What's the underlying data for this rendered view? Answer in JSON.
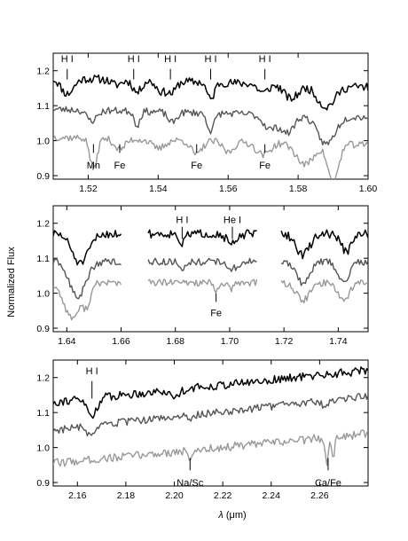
{
  "figure": {
    "ylabel": "Normalized Flux",
    "xlabel_symbol": "λ",
    "xlabel_unit": "(μm)"
  },
  "chart_data": [
    {
      "type": "line",
      "panel": "H-band",
      "xlim": [
        1.51,
        1.6
      ],
      "ylim": [
        0.89,
        1.25
      ],
      "xticks": [
        1.52,
        1.54,
        1.56,
        1.58,
        1.6
      ],
      "xtick_labels": [
        "1.52",
        "1.54",
        "1.56",
        "1.58",
        "1.60"
      ],
      "yticks": [
        0.9,
        1.0,
        1.1,
        1.2
      ],
      "ytick_labels": [
        "0.9",
        "1.0",
        "1.1",
        "1.2"
      ],
      "segments": [
        [
          1.51,
          1.6
        ]
      ],
      "series": [
        {
          "color": "#000000",
          "width": 1.5,
          "base": 1.18,
          "slope": -0.3,
          "noise": 0.012,
          "seed": 11,
          "features": [
            [
              1.514,
              0.045,
              0.0018
            ],
            [
              1.528,
              0.015,
              0.0015
            ],
            [
              1.534,
              0.035,
              0.0012
            ],
            [
              1.541,
              0.03,
              0.0015
            ],
            [
              1.544,
              0.03,
              0.0012
            ],
            [
              1.555,
              0.05,
              0.001
            ],
            [
              1.57,
              0.025,
              0.0015
            ],
            [
              1.578,
              0.04,
              0.002
            ],
            [
              1.588,
              0.06,
              0.0025
            ]
          ]
        },
        {
          "color": "#555555",
          "width": 1.4,
          "base": 1.09,
          "slope": -0.25,
          "noise": 0.01,
          "seed": 23,
          "features": [
            [
              1.521,
              0.03,
              0.0015
            ],
            [
              1.534,
              0.04,
              0.0008
            ],
            [
              1.544,
              0.03,
              0.0012
            ],
            [
              1.555,
              0.05,
              0.001
            ],
            [
              1.572,
              0.04,
              0.002
            ],
            [
              1.577,
              0.05,
              0.0018
            ],
            [
              1.588,
              0.08,
              0.0025
            ]
          ]
        },
        {
          "color": "#999999",
          "width": 1.4,
          "base": 1.01,
          "slope": -0.25,
          "noise": 0.01,
          "seed": 37,
          "features": [
            [
              1.5215,
              0.09,
              0.001
            ],
            [
              1.529,
              0.03,
              0.0015
            ],
            [
              1.54,
              0.025,
              0.0018
            ],
            [
              1.551,
              0.04,
              0.0015
            ],
            [
              1.56,
              0.03,
              0.0015
            ],
            [
              1.57,
              0.035,
              0.002
            ],
            [
              1.582,
              0.06,
              0.0025
            ],
            [
              1.59,
              0.11,
              0.0015
            ]
          ]
        }
      ],
      "annotations": [
        {
          "text": "H I",
          "x": 1.514,
          "pos": "top",
          "y_text": 1.225,
          "y1": 1.205,
          "y2": 1.175
        },
        {
          "text": "H I",
          "x": 1.533,
          "pos": "top",
          "y_text": 1.225,
          "y1": 1.205,
          "y2": 1.175
        },
        {
          "text": "H I",
          "x": 1.5435,
          "pos": "top",
          "y_text": 1.225,
          "y1": 1.205,
          "y2": 1.175
        },
        {
          "text": "H I",
          "x": 1.555,
          "pos": "top",
          "y_text": 1.225,
          "y1": 1.205,
          "y2": 1.175
        },
        {
          "text": "H I",
          "x": 1.5705,
          "pos": "top",
          "y_text": 1.225,
          "y1": 1.205,
          "y2": 1.175
        },
        {
          "text": "Mn",
          "x": 1.5215,
          "pos": "bottom",
          "y_text": 0.93,
          "y1": 0.965,
          "y2": 0.99
        },
        {
          "text": "Fe",
          "x": 1.529,
          "pos": "bottom",
          "y_text": 0.93,
          "y1": 0.965,
          "y2": 0.99
        },
        {
          "text": "Fe",
          "x": 1.551,
          "pos": "bottom",
          "y_text": 0.93,
          "y1": 0.965,
          "y2": 0.99
        },
        {
          "text": "Fe",
          "x": 1.5705,
          "pos": "bottom",
          "y_text": 0.93,
          "y1": 0.965,
          "y2": 0.99
        }
      ]
    },
    {
      "type": "line",
      "panel": "K-band blue",
      "xlim": [
        1.635,
        1.751
      ],
      "ylim": [
        0.89,
        1.25
      ],
      "xticks": [
        1.64,
        1.66,
        1.68,
        1.7,
        1.72,
        1.74
      ],
      "xtick_labels": [
        "1.64",
        "1.66",
        "1.68",
        "1.70",
        "1.72",
        "1.74"
      ],
      "yticks": [
        0.9,
        1.0,
        1.1,
        1.2
      ],
      "ytick_labels": [
        "0.9",
        "1.0",
        "1.1",
        "1.2"
      ],
      "segments": [
        [
          1.635,
          1.66
        ],
        [
          1.67,
          1.71
        ],
        [
          1.719,
          1.751
        ]
      ],
      "series": [
        {
          "color": "#000000",
          "width": 1.5,
          "base": 1.17,
          "slope": 0,
          "noise": 0.012,
          "seed": 51,
          "features": [
            [
              1.645,
              0.085,
              0.003
            ],
            [
              1.6825,
              0.03,
              0.001
            ],
            [
              1.701,
              0.03,
              0.002
            ],
            [
              1.727,
              0.06,
              0.0025
            ],
            [
              1.743,
              0.05,
              0.002
            ]
          ]
        },
        {
          "color": "#555555",
          "width": 1.4,
          "base": 1.09,
          "slope": 0,
          "noise": 0.01,
          "seed": 63,
          "features": [
            [
              1.644,
              0.1,
              0.003
            ],
            [
              1.6825,
              0.02,
              0.001
            ],
            [
              1.701,
              0.02,
              0.002
            ],
            [
              1.727,
              0.06,
              0.0025
            ],
            [
              1.742,
              0.06,
              0.002
            ]
          ]
        },
        {
          "color": "#999999",
          "width": 1.4,
          "base": 1.03,
          "slope": 0,
          "noise": 0.01,
          "seed": 77,
          "features": [
            [
              1.642,
              0.1,
              0.003
            ],
            [
              1.6475,
              0.05,
              0.0015
            ],
            [
              1.695,
              0.025,
              0.001
            ],
            [
              1.7005,
              0.02,
              0.001
            ],
            [
              1.727,
              0.05,
              0.0025
            ],
            [
              1.742,
              0.05,
              0.002
            ]
          ]
        }
      ],
      "annotations": [
        {
          "text": "H I",
          "x": 1.6825,
          "pos": "top",
          "y_text": 1.2,
          "y1": 1.19,
          "y2": 1.155
        },
        {
          "text": "He I",
          "x": 1.701,
          "pos": "top",
          "y_text": 1.2,
          "y1": 1.19,
          "y2": 1.155
        },
        {
          "text": "Fe",
          "x": 1.695,
          "pos": "bottom",
          "y_text": 0.945,
          "y1": 0.975,
          "y2": 1.0
        }
      ]
    },
    {
      "type": "line",
      "panel": "K-band red",
      "xlim": [
        2.15,
        2.28
      ],
      "ylim": [
        0.89,
        1.25
      ],
      "xticks": [
        2.16,
        2.18,
        2.2,
        2.22,
        2.24,
        2.26
      ],
      "xtick_labels": [
        "2.16",
        "2.18",
        "2.20",
        "2.22",
        "2.24",
        "2.26"
      ],
      "yticks": [
        0.9,
        1.0,
        1.1,
        1.2
      ],
      "ytick_labels": [
        "0.9",
        "1.0",
        "1.1",
        "1.2"
      ],
      "segments": [
        [
          2.15,
          2.28
        ]
      ],
      "series": [
        {
          "color": "#000000",
          "width": 1.5,
          "base": 1.13,
          "slope": 0.7,
          "noise": 0.012,
          "seed": 91,
          "features": [
            [
              2.166,
              0.05,
              0.002
            ],
            [
              2.2,
              0.02,
              0.002
            ]
          ]
        },
        {
          "color": "#555555",
          "width": 1.4,
          "base": 1.05,
          "slope": 0.75,
          "noise": 0.011,
          "seed": 103,
          "features": [
            [
              2.166,
              0.03,
              0.002
            ],
            [
              2.2065,
              0.02,
              0.001
            ],
            [
              2.262,
              0.02,
              0.001
            ]
          ]
        },
        {
          "color": "#999999",
          "width": 1.4,
          "base": 0.955,
          "slope": 0.65,
          "noise": 0.012,
          "seed": 117,
          "features": [
            [
              2.2065,
              0.035,
              0.0008
            ],
            [
              2.263,
              0.07,
              0.0006
            ],
            [
              2.2655,
              0.06,
              0.0006
            ]
          ]
        }
      ],
      "annotations": [
        {
          "text": "H I",
          "x": 2.166,
          "pos": "top",
          "y_text": 1.21,
          "y1": 1.19,
          "y2": 1.14
        },
        {
          "text": "Na/Sc",
          "x": 2.2065,
          "pos": "bottom",
          "y_text": 0.9,
          "y1": 0.935,
          "y2": 0.97
        },
        {
          "text": "Ca/Fe",
          "x": 2.2635,
          "pos": "bottom",
          "y_text": 0.9,
          "y1": 0.935,
          "y2": 0.97
        }
      ]
    }
  ]
}
